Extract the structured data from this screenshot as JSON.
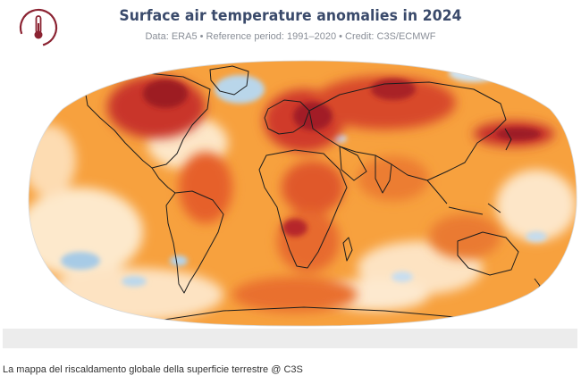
{
  "figure": {
    "title": "Surface air temperature anomalies in 2024",
    "subtitle": "Data: ERA5 • Reference period: 1991–2020 • Credit: C3S/ECMWF",
    "logo": "thermometer-logo-icon",
    "colors": {
      "title": "#3a4a6b",
      "logo": "#8b2332",
      "warm_strong": "#b2182b",
      "warm": "#e0632a",
      "warm_light": "#f7b74a",
      "neutral": "#fdf1dc",
      "cool": "#8fc0e0"
    }
  },
  "caption": "La mappa del riscaldamento globale della superficie terrestre @ C3S"
}
